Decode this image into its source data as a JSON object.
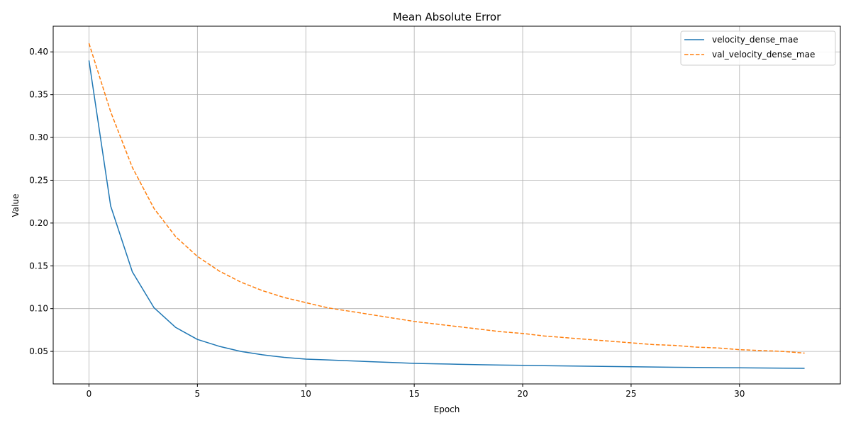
{
  "chart_data": {
    "type": "line",
    "title": "Mean Absolute Error",
    "xlabel": "Epoch",
    "ylabel": "Value",
    "xlim": [
      -1.65,
      34.65
    ],
    "ylim": [
      0.012,
      0.43
    ],
    "xticks": [
      0,
      5,
      10,
      15,
      20,
      25,
      30
    ],
    "yticks": [
      0.05,
      0.1,
      0.15,
      0.2,
      0.25,
      0.3,
      0.35,
      0.4
    ],
    "grid": true,
    "legend_position": "top-right",
    "x": [
      0,
      1,
      2,
      3,
      4,
      5,
      6,
      7,
      8,
      9,
      10,
      11,
      12,
      13,
      14,
      15,
      16,
      17,
      18,
      19,
      20,
      21,
      22,
      23,
      24,
      25,
      26,
      27,
      28,
      29,
      30,
      31,
      32,
      33
    ],
    "series": [
      {
        "name": "velocity_dense_mae",
        "color": "#1f77b4",
        "style": "solid",
        "values": [
          0.39,
          0.22,
          0.143,
          0.101,
          0.078,
          0.064,
          0.056,
          0.05,
          0.046,
          0.043,
          0.041,
          0.04,
          0.039,
          0.038,
          0.037,
          0.036,
          0.0355,
          0.035,
          0.0345,
          0.034,
          0.0337,
          0.0333,
          0.033,
          0.0327,
          0.0324,
          0.0321,
          0.0318,
          0.0315,
          0.0312,
          0.031,
          0.0308,
          0.0306,
          0.0304,
          0.0302
        ]
      },
      {
        "name": "val_velocity_dense_mae",
        "color": "#ff7f0e",
        "style": "dashed",
        "values": [
          0.41,
          0.33,
          0.265,
          0.217,
          0.184,
          0.161,
          0.144,
          0.131,
          0.121,
          0.113,
          0.107,
          0.101,
          0.097,
          0.093,
          0.089,
          0.085,
          0.082,
          0.079,
          0.076,
          0.073,
          0.071,
          0.068,
          0.066,
          0.064,
          0.062,
          0.06,
          0.058,
          0.057,
          0.055,
          0.054,
          0.052,
          0.051,
          0.05,
          0.048
        ]
      }
    ]
  }
}
